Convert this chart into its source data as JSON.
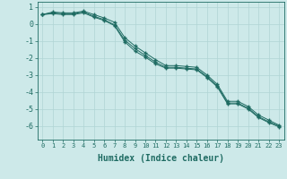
{
  "x": [
    0,
    1,
    2,
    3,
    4,
    5,
    6,
    7,
    8,
    9,
    10,
    11,
    12,
    13,
    14,
    15,
    16,
    17,
    18,
    19,
    20,
    21,
    22,
    23
  ],
  "line1": [
    0.55,
    0.7,
    0.65,
    0.65,
    0.75,
    0.55,
    0.35,
    0.1,
    -0.8,
    -1.3,
    -1.7,
    -2.1,
    -2.45,
    -2.45,
    -2.5,
    -2.55,
    -3.0,
    -3.55,
    -4.55,
    -4.55,
    -4.85,
    -5.35,
    -5.65,
    -5.95
  ],
  "line2": [
    0.55,
    0.65,
    0.6,
    0.6,
    0.7,
    0.45,
    0.25,
    -0.05,
    -0.95,
    -1.45,
    -1.85,
    -2.25,
    -2.55,
    -2.55,
    -2.6,
    -2.65,
    -3.1,
    -3.65,
    -4.65,
    -4.65,
    -4.95,
    -5.45,
    -5.75,
    -6.0
  ],
  "line3": [
    0.55,
    0.6,
    0.55,
    0.55,
    0.65,
    0.4,
    0.2,
    -0.1,
    -1.05,
    -1.6,
    -1.95,
    -2.35,
    -2.6,
    -2.6,
    -2.65,
    -2.7,
    -3.15,
    -3.7,
    -4.7,
    -4.7,
    -5.0,
    -5.5,
    -5.8,
    -6.05
  ],
  "bg_color": "#cde9e9",
  "grid_color": "#b0d4d4",
  "line_color": "#1e6b62",
  "marker": "+",
  "xlabel": "Humidex (Indice chaleur)",
  "ylim": [
    -6.8,
    1.3
  ],
  "xlim": [
    -0.5,
    23.5
  ],
  "yticks": [
    1,
    0,
    -1,
    -2,
    -3,
    -4,
    -5,
    -6
  ],
  "xticks": [
    0,
    1,
    2,
    3,
    4,
    5,
    6,
    7,
    8,
    9,
    10,
    11,
    12,
    13,
    14,
    15,
    16,
    17,
    18,
    19,
    20,
    21,
    22,
    23
  ],
  "xlabel_fontsize": 7,
  "tick_fontsize": 6
}
